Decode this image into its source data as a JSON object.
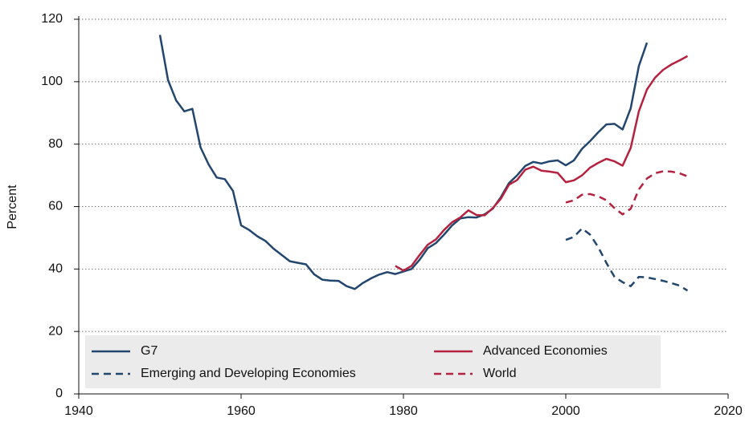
{
  "chart_data": {
    "type": "line",
    "ylabel": "Percent",
    "xlim": [
      1940,
      2020
    ],
    "xticks": [
      1940,
      1960,
      1980,
      2000,
      2020
    ],
    "ylim": [
      0,
      120
    ],
    "yticks": [
      0,
      20,
      40,
      60,
      80,
      100,
      120
    ],
    "grid": true,
    "legend": "bottom",
    "series": [
      {
        "name": "G7",
        "color": "#22466e",
        "style": "solid",
        "x": [
          1950,
          1951,
          1952,
          1953,
          1954,
          1955,
          1956,
          1957,
          1958,
          1959,
          1960,
          1961,
          1962,
          1963,
          1964,
          1965,
          1966,
          1967,
          1968,
          1969,
          1970,
          1971,
          1972,
          1973,
          1974,
          1975,
          1976,
          1977,
          1978,
          1979,
          1980,
          1981,
          1982,
          1983,
          1984,
          1985,
          1986,
          1987,
          1988,
          1989,
          1990,
          1991,
          1992,
          1993,
          1994,
          1995,
          1996,
          1997,
          1998,
          1999,
          2000,
          2001,
          2002,
          2003,
          2004,
          2005,
          2006,
          2007,
          2008,
          2009,
          2010
        ],
        "values": [
          115,
          100.5,
          94,
          90.5,
          91.3,
          79,
          73.5,
          69.3,
          68.8,
          65,
          54,
          52.5,
          50.5,
          49,
          46.5,
          44.5,
          42.5,
          42,
          41.5,
          38.3,
          36.6,
          36.3,
          36.2,
          34.5,
          33.6,
          35.5,
          37,
          38.2,
          39,
          38.4,
          39.2,
          40,
          43,
          46.7,
          48.3,
          51,
          54,
          56.2,
          56.6,
          56.5,
          57.5,
          59.3,
          63,
          67.5,
          70,
          73,
          74.3,
          73.8,
          74.5,
          74.8,
          73.2,
          74.8,
          78.5,
          81,
          83.8,
          86.3,
          86.5,
          84.7,
          91.5,
          105,
          112.5
        ]
      },
      {
        "name": "Emerging and Developing Economies",
        "color": "#22466e",
        "style": "dashed",
        "x": [
          2000,
          2001,
          2002,
          2003,
          2004,
          2005,
          2006,
          2007,
          2008,
          2009,
          2010,
          2011,
          2012,
          2013,
          2014,
          2015
        ],
        "values": [
          49.3,
          50.3,
          53,
          51,
          47,
          42,
          37.5,
          35.8,
          34.5,
          37.5,
          37.3,
          36.8,
          36.2,
          35.5,
          34.7,
          33.1
        ]
      },
      {
        "name": "Advanced Economies",
        "color": "#b5223f",
        "style": "solid",
        "x": [
          1979,
          1980,
          1981,
          1982,
          1983,
          1984,
          1985,
          1986,
          1987,
          1988,
          1989,
          1990,
          1991,
          1992,
          1993,
          1994,
          1995,
          1996,
          1997,
          1998,
          1999,
          2000,
          2001,
          2002,
          2003,
          2004,
          2005,
          2006,
          2007,
          2008,
          2009,
          2010,
          2011,
          2012,
          2013,
          2014,
          2015
        ],
        "values": [
          41,
          39.5,
          41,
          44.5,
          47.8,
          49.5,
          52.5,
          55,
          56.5,
          58.8,
          57.3,
          57.2,
          59.5,
          62.5,
          67,
          68.5,
          71.8,
          72.8,
          71.5,
          71.2,
          70.8,
          67.8,
          68.4,
          70,
          72.5,
          74,
          75.3,
          74.5,
          73.1,
          78.8,
          90.5,
          97.5,
          101.3,
          103.8,
          105.5,
          106.8,
          108.2
        ]
      },
      {
        "name": "World",
        "color": "#b5223f",
        "style": "dashed",
        "x": [
          2000,
          2001,
          2002,
          2003,
          2004,
          2005,
          2006,
          2007,
          2008,
          2009,
          2010,
          2011,
          2012,
          2013,
          2014,
          2015
        ],
        "values": [
          61.3,
          62,
          63.8,
          64,
          63.3,
          62,
          59.5,
          57.5,
          59.3,
          65.5,
          69,
          70.7,
          71.3,
          71.2,
          70.7,
          69.7
        ]
      }
    ]
  }
}
